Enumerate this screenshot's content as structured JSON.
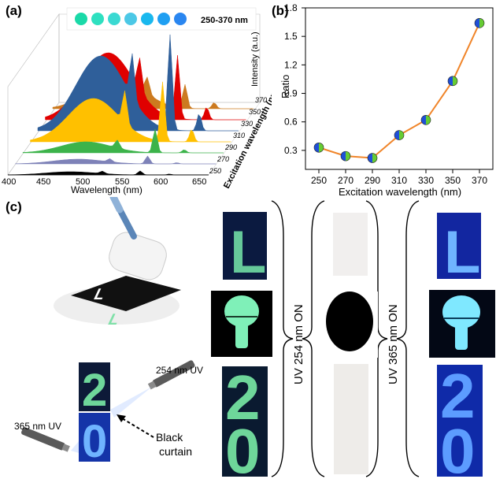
{
  "panel_labels": {
    "a": "(a)",
    "b": "(b)",
    "c": "(c)"
  },
  "panel_a": {
    "banner": "250-370 nm",
    "dot_colors": [
      "#1ad9a8",
      "#2ee0c0",
      "#3ad9d2",
      "#4cc8e6",
      "#1ab8ee",
      "#1f9ff2",
      "#2a86f0"
    ],
    "xlabel": "Wavelength (nm)",
    "x_ticks": [
      "400",
      "450",
      "500",
      "550",
      "600",
      "650"
    ],
    "ylabel": "Intensity (a.u.)",
    "zlabel": "Excitation wavelength (nm)",
    "z_ticks": [
      "250",
      "270",
      "290",
      "310",
      "330",
      "350",
      "370"
    ],
    "series_colors": [
      "#000000",
      "#7e82b8",
      "#3cb34a",
      "#ffc000",
      "#2f5f9a",
      "#e00000",
      "#cc7a1f"
    ]
  },
  "chart_data": {
    "type": "line",
    "x": [
      250,
      270,
      290,
      310,
      330,
      350,
      370
    ],
    "values": [
      0.33,
      0.24,
      0.22,
      0.46,
      0.62,
      1.03,
      1.64
    ],
    "xlabel": "Excitation wavelength (nm)",
    "ylabel": "Ratio",
    "x_ticks": [
      "250",
      "270",
      "290",
      "310",
      "330",
      "350",
      "370"
    ],
    "y_ticks": [
      "0.3",
      "0.6",
      "0.9",
      "1.2",
      "1.5",
      "1.8"
    ],
    "xlim": [
      240,
      380
    ],
    "ylim": [
      0.1,
      1.8
    ],
    "line_color": "#f0852a",
    "marker_colors": [
      "#1f4fd8",
      "#66cc33"
    ]
  },
  "panel_c": {
    "uv254": "254 nm UV",
    "uv365": "365 nm UV",
    "curtain": "Black\ncurtain",
    "col_label_254": "UV 254 nm ON",
    "col_label_365": "UV 365 nm ON",
    "glyph_l": "L",
    "glyph_2": "2",
    "glyph_0": "0",
    "colors": {
      "dark_bg": "#0a1230",
      "green_glow": "#7fe0a8",
      "blue_glow": "#6fb4ff"
    }
  }
}
